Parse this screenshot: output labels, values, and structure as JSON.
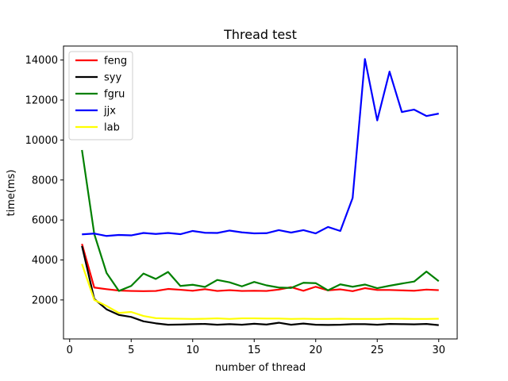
{
  "chart_data": {
    "type": "line",
    "title": "Thread test",
    "xlabel": "number of thread",
    "ylabel": "time(ms)",
    "xlim": [
      -0.5,
      31.5
    ],
    "ylim": [
      50,
      14700
    ],
    "xticks": [
      0,
      5,
      10,
      15,
      20,
      25,
      30
    ],
    "yticks": [
      2000,
      4000,
      6000,
      8000,
      10000,
      12000,
      14000
    ],
    "grid": false,
    "legend_position": "top-left",
    "x": [
      1,
      2,
      3,
      4,
      5,
      6,
      7,
      8,
      9,
      10,
      11,
      12,
      13,
      14,
      15,
      16,
      17,
      18,
      19,
      20,
      21,
      22,
      23,
      24,
      25,
      26,
      27,
      28,
      29,
      30
    ],
    "series": [
      {
        "name": "feng",
        "color": "#ff0000",
        "values": [
          4800,
          2620,
          2540,
          2470,
          2450,
          2440,
          2450,
          2550,
          2510,
          2460,
          2540,
          2450,
          2490,
          2450,
          2460,
          2450,
          2520,
          2640,
          2460,
          2660,
          2480,
          2530,
          2440,
          2590,
          2500,
          2500,
          2480,
          2460,
          2520,
          2490
        ]
      },
      {
        "name": "syy",
        "color": "#000000",
        "values": [
          4700,
          2050,
          1530,
          1250,
          1150,
          930,
          830,
          760,
          770,
          790,
          800,
          760,
          790,
          760,
          810,
          770,
          860,
          760,
          820,
          760,
          750,
          760,
          790,
          790,
          760,
          800,
          790,
          780,
          800,
          740
        ]
      },
      {
        "name": "fgru",
        "color": "#008000",
        "values": [
          9500,
          5300,
          3350,
          2450,
          2700,
          3320,
          3050,
          3400,
          2700,
          2760,
          2650,
          3000,
          2880,
          2680,
          2900,
          2730,
          2620,
          2600,
          2860,
          2840,
          2480,
          2780,
          2660,
          2770,
          2590,
          2710,
          2820,
          2920,
          3420,
          2940
        ]
      },
      {
        "name": "jjx",
        "color": "#0000ff",
        "values": [
          5280,
          5320,
          5200,
          5250,
          5230,
          5350,
          5300,
          5350,
          5290,
          5450,
          5360,
          5350,
          5470,
          5380,
          5330,
          5340,
          5490,
          5370,
          5490,
          5330,
          5650,
          5450,
          7100,
          14050,
          10980,
          13420,
          11400,
          11520,
          11200,
          11320
        ]
      },
      {
        "name": "lab",
        "color": "#ffff00",
        "values": [
          3800,
          2000,
          1700,
          1350,
          1400,
          1200,
          1090,
          1070,
          1060,
          1050,
          1060,
          1080,
          1050,
          1080,
          1080,
          1070,
          1070,
          1050,
          1060,
          1050,
          1050,
          1060,
          1050,
          1050,
          1050,
          1060,
          1060,
          1050,
          1050,
          1060
        ]
      }
    ]
  }
}
